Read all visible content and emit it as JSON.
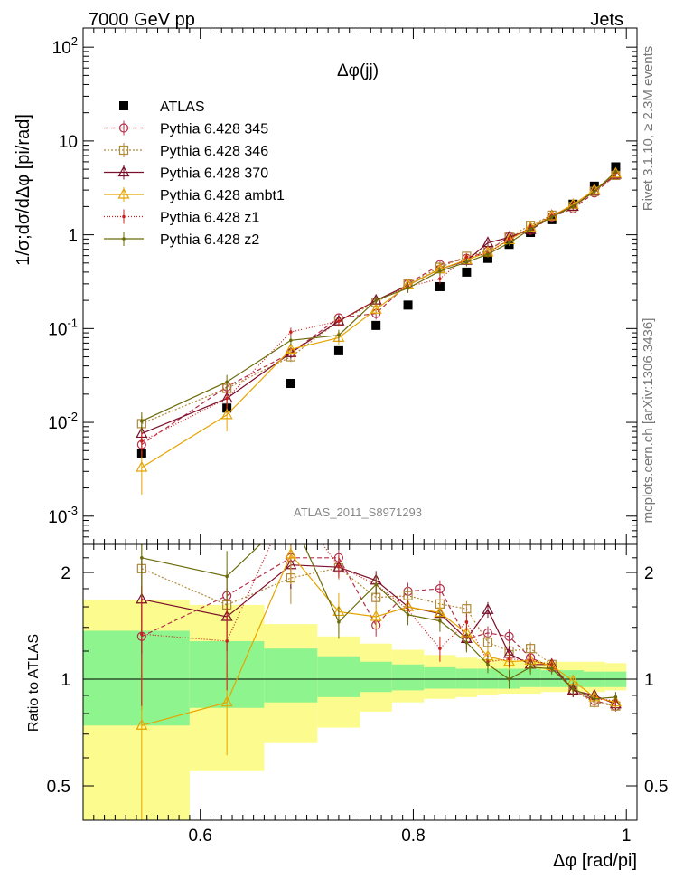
{
  "header": {
    "left": "7000 GeV pp",
    "right": "Jets"
  },
  "side_labels": {
    "rivet": "Rivet 3.1.10, ≥ 2.3M events",
    "mcplots": "mcplots.cern.ch [arXiv:1306.3436]"
  },
  "chart_data": [
    {
      "type": "line",
      "panel": "main",
      "title": "Δφ(jj)",
      "ylabel": "1/σ;dσ/dΔφ [pi/rad]",
      "analysis_label": "ATLAS_2011_S8971293",
      "yscale": "log",
      "xlim": [
        0.49,
        1.01
      ],
      "ylim": [
        0.0005,
        160
      ],
      "ytick_labels": [
        {
          "base": "10",
          "exp": "-3",
          "value": 0.001
        },
        {
          "base": "10",
          "exp": "-2",
          "value": 0.01
        },
        {
          "base": "10",
          "exp": "-1",
          "value": 0.1
        },
        {
          "base": "1",
          "exp": "",
          "value": 1
        },
        {
          "base": "10",
          "exp": "",
          "value": 10
        },
        {
          "base": "10",
          "exp": "2",
          "value": 100
        }
      ],
      "x": [
        0.545,
        0.625,
        0.685,
        0.73,
        0.765,
        0.795,
        0.825,
        0.85,
        0.87,
        0.89,
        0.91,
        0.93,
        0.95,
        0.97,
        0.99
      ],
      "series": [
        {
          "name": "ATLAS",
          "color": "#000000",
          "marker": "square-filled",
          "values": [
            0.0047,
            0.0142,
            0.026,
            0.058,
            0.108,
            0.178,
            0.28,
            0.4,
            0.56,
            0.79,
            1.06,
            1.45,
            2.12,
            3.3,
            5.3
          ]
        },
        {
          "name": "Pythia 6.428 345",
          "color": "#b2304a",
          "dash": "5,3",
          "marker": "circle-open",
          "values": [
            0.0058,
            0.024,
            0.055,
            0.13,
            0.145,
            0.3,
            0.48,
            0.56,
            0.67,
            0.96,
            1.12,
            1.55,
            1.9,
            2.8,
            4.3
          ],
          "errors": [
            0.0012,
            0.003,
            0.006,
            0.015,
            0.02,
            0.03,
            0.04,
            0.05,
            0.05,
            0.06,
            0.07,
            0.08,
            0.1,
            0.12,
            0.15
          ]
        },
        {
          "name": "Pythia 6.428 346",
          "color": "#b08a38",
          "dash": "2,2",
          "marker": "square-open",
          "values": [
            0.0097,
            0.023,
            0.05,
            0.12,
            0.19,
            0.3,
            0.45,
            0.59,
            0.68,
            0.96,
            1.26,
            1.62,
            2.0,
            2.9,
            4.3
          ],
          "errors": [
            0.002,
            0.004,
            0.006,
            0.015,
            0.02,
            0.03,
            0.04,
            0.05,
            0.05,
            0.06,
            0.07,
            0.08,
            0.1,
            0.12,
            0.15
          ]
        },
        {
          "name": "Pythia 6.428 370",
          "color": "#7a0f2a",
          "marker": "triangle-open",
          "values": [
            0.0076,
            0.018,
            0.055,
            0.12,
            0.2,
            0.29,
            0.43,
            0.53,
            0.82,
            0.94,
            1.13,
            1.6,
            2.0,
            2.95,
            4.4
          ],
          "errors": [
            0.0015,
            0.004,
            0.007,
            0.014,
            0.02,
            0.03,
            0.04,
            0.05,
            0.06,
            0.06,
            0.07,
            0.08,
            0.1,
            0.12,
            0.15
          ]
        },
        {
          "name": "Pythia 6.428 ambt1",
          "color": "#e6a400",
          "marker": "triangle-open",
          "values": [
            0.0033,
            0.012,
            0.06,
            0.08,
            0.16,
            0.29,
            0.43,
            0.54,
            0.65,
            0.88,
            1.2,
            1.58,
            2.1,
            3.0,
            4.5
          ],
          "errors": [
            0.0016,
            0.004,
            0.008,
            0.012,
            0.02,
            0.03,
            0.04,
            0.05,
            0.05,
            0.06,
            0.07,
            0.08,
            0.1,
            0.12,
            0.15
          ]
        },
        {
          "name": "Pythia 6.428 z1",
          "color": "#c8201c",
          "dash": "1,2",
          "marker": "dot",
          "values": [
            0.0063,
            0.018,
            0.092,
            0.12,
            0.2,
            0.28,
            0.34,
            0.58,
            0.63,
            0.9,
            1.2,
            1.6,
            2.0,
            2.9,
            4.6
          ],
          "errors": [
            0.002,
            0.004,
            0.01,
            0.014,
            0.02,
            0.03,
            0.04,
            0.05,
            0.05,
            0.06,
            0.07,
            0.08,
            0.1,
            0.12,
            0.15
          ]
        },
        {
          "name": "Pythia 6.428 z2",
          "color": "#6b6b0a",
          "marker": "dot",
          "values": [
            0.0103,
            0.027,
            0.075,
            0.085,
            0.2,
            0.27,
            0.41,
            0.51,
            0.62,
            0.82,
            1.15,
            1.55,
            2.0,
            2.9,
            4.7
          ],
          "errors": [
            0.0025,
            0.005,
            0.009,
            0.012,
            0.02,
            0.03,
            0.04,
            0.05,
            0.05,
            0.06,
            0.07,
            0.08,
            0.1,
            0.12,
            0.15
          ]
        }
      ]
    },
    {
      "type": "line",
      "panel": "ratio",
      "ylabel": "Ratio to ATLAS",
      "xlabel": "Δφ [rad/pi]",
      "yscale": "log",
      "xlim": [
        0.49,
        1.01
      ],
      "ylim": [
        0.4,
        2.4
      ],
      "yticks": [
        0.5,
        1,
        2
      ],
      "ytick_labels": [
        "0.5",
        "1",
        "2"
      ],
      "xticks": [
        0.6,
        0.8,
        1.0
      ],
      "xtick_labels": [
        "0.6",
        "0.8",
        "1"
      ],
      "reference_line": 1,
      "uncertainty_bands": {
        "bin_edges": [
          0.49,
          0.59,
          0.66,
          0.71,
          0.75,
          0.78,
          0.81,
          0.84,
          0.86,
          0.88,
          0.9,
          0.92,
          0.94,
          0.96,
          0.98,
          1.0
        ],
        "stat_color": "#8ef58e",
        "total_color": "#fbfb8e",
        "stat_low": [
          0.74,
          0.83,
          0.86,
          0.89,
          0.92,
          0.93,
          0.94,
          0.94,
          0.94,
          0.94,
          0.95,
          0.95,
          0.95,
          0.95,
          0.95
        ],
        "stat_high": [
          1.37,
          1.28,
          1.22,
          1.16,
          1.12,
          1.1,
          1.08,
          1.07,
          1.07,
          1.07,
          1.07,
          1.06,
          1.06,
          1.05,
          1.05
        ],
        "total_low": [
          0.4,
          0.55,
          0.66,
          0.73,
          0.81,
          0.86,
          0.88,
          0.89,
          0.9,
          0.91,
          0.91,
          0.92,
          0.92,
          0.92,
          0.93
        ],
        "total_high": [
          1.67,
          1.62,
          1.43,
          1.32,
          1.26,
          1.21,
          1.17,
          1.15,
          1.14,
          1.13,
          1.13,
          1.12,
          1.12,
          1.12,
          1.11
        ]
      },
      "x": [
        0.545,
        0.625,
        0.685,
        0.73,
        0.765,
        0.795,
        0.825,
        0.85,
        0.87,
        0.89,
        0.91,
        0.93,
        0.95,
        0.97,
        0.99
      ],
      "series": [
        {
          "name": "Pythia 6.428 345",
          "color": "#b2304a",
          "dash": "5,3",
          "marker": "circle-open",
          "values": [
            1.32,
            1.72,
            2.2,
            2.2,
            1.42,
            1.77,
            1.8,
            1.3,
            1.35,
            1.32,
            1.15,
            1.08,
            0.93,
            0.87,
            0.84
          ],
          "errors": [
            0.5,
            0.3,
            0.4,
            0.12,
            0.1,
            0.1,
            0.1,
            0.1,
            0.06,
            0.06,
            0.05,
            0.04,
            0.04,
            0.03,
            0.03
          ]
        },
        {
          "name": "Pythia 6.428 346",
          "color": "#b08a38",
          "dash": "2,2",
          "marker": "square-open",
          "values": [
            2.05,
            1.62,
            1.93,
            2.06,
            1.7,
            1.72,
            1.63,
            1.58,
            1.27,
            1.2,
            1.22,
            1.1,
            0.93,
            0.86,
            0.84
          ],
          "errors": [
            0.6,
            0.35,
            0.3,
            0.15,
            0.12,
            0.1,
            0.1,
            0.08,
            0.06,
            0.06,
            0.05,
            0.04,
            0.04,
            0.03,
            0.03
          ]
        },
        {
          "name": "Pythia 6.428 370",
          "color": "#7a0f2a",
          "marker": "triangle-open",
          "values": [
            1.68,
            1.5,
            2.1,
            2.07,
            1.9,
            1.6,
            1.53,
            1.3,
            1.57,
            1.18,
            1.1,
            1.1,
            0.93,
            0.9,
            0.85
          ],
          "errors": [
            0.5,
            0.3,
            0.3,
            0.12,
            0.12,
            0.1,
            0.1,
            0.08,
            0.08,
            0.06,
            0.05,
            0.04,
            0.04,
            0.03,
            0.03
          ]
        },
        {
          "name": "Pythia 6.428 ambt1",
          "color": "#e6a400",
          "marker": "triangle-open",
          "values": [
            0.74,
            0.86,
            2.25,
            1.55,
            1.5,
            1.6,
            1.54,
            1.35,
            1.16,
            1.12,
            1.13,
            1.09,
            0.99,
            0.89,
            0.86
          ],
          "errors": [
            0.4,
            0.25,
            0.4,
            0.2,
            0.12,
            0.1,
            0.1,
            0.08,
            0.06,
            0.06,
            0.05,
            0.04,
            0.04,
            0.03,
            0.03
          ]
        },
        {
          "name": "Pythia 6.428 z1",
          "color": "#c8201c",
          "dash": "1,2",
          "marker": "dot",
          "values": [
            1.34,
            1.28,
            3.2,
            2.08,
            1.85,
            1.57,
            1.22,
            1.45,
            1.12,
            1.14,
            1.13,
            1.1,
            0.94,
            0.88,
            0.87
          ],
          "errors": [
            0.5,
            0.35,
            0.4,
            0.15,
            0.12,
            0.1,
            0.1,
            0.08,
            0.06,
            0.06,
            0.05,
            0.04,
            0.04,
            0.03,
            0.03
          ]
        },
        {
          "name": "Pythia 6.428 z2",
          "color": "#6b6b0a",
          "marker": "dot",
          "values": [
            2.2,
            1.95,
            2.9,
            1.45,
            1.85,
            1.52,
            1.46,
            1.27,
            1.1,
            1.0,
            1.08,
            1.07,
            0.94,
            0.88,
            0.89
          ],
          "errors": [
            0.5,
            0.35,
            0.4,
            0.15,
            0.12,
            0.1,
            0.1,
            0.08,
            0.06,
            0.06,
            0.05,
            0.04,
            0.04,
            0.03,
            0.03
          ]
        }
      ]
    }
  ]
}
